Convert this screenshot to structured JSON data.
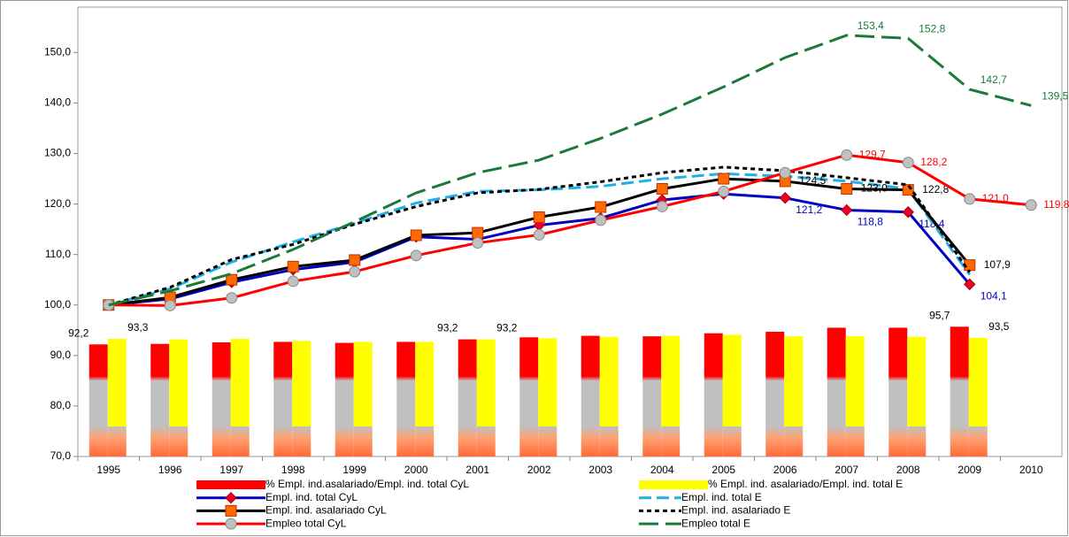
{
  "chart_data": {
    "type": "combo",
    "categories": [
      "1995",
      "1996",
      "1997",
      "1998",
      "1999",
      "2000",
      "2001",
      "2002",
      "2003",
      "2004",
      "2005",
      "2006",
      "2007",
      "2008",
      "2009",
      "2010"
    ],
    "ylim": [
      70,
      159
    ],
    "yticks": [
      {
        "value": 70,
        "label": "70,0"
      },
      {
        "value": 80,
        "label": "80,0"
      },
      {
        "value": 90,
        "label": "90,0"
      },
      {
        "value": 100,
        "label": "100,0"
      },
      {
        "value": 110,
        "label": "110,0"
      },
      {
        "value": 120,
        "label": "120,0"
      },
      {
        "value": 130,
        "label": "130,0"
      },
      {
        "value": 140,
        "label": "140,0"
      },
      {
        "value": 150,
        "label": "150,0"
      }
    ],
    "series": [
      {
        "name": "% Empl. ind.asalariado/Empl. ind. total CyL",
        "type": "bar",
        "color": "#ff0000",
        "values": [
          92.2,
          92.3,
          92.6,
          92.7,
          92.5,
          92.7,
          93.2,
          93.6,
          93.9,
          93.8,
          94.4,
          94.7,
          95.5,
          95.5,
          95.7,
          null
        ],
        "value_labels": [
          "92,2",
          null,
          null,
          null,
          null,
          null,
          "93,2",
          null,
          null,
          null,
          null,
          null,
          null,
          null,
          "95,7",
          null
        ]
      },
      {
        "name": "% Empl. ind. asalariado/Empl. ind. total E",
        "type": "bar",
        "color": "#ffff00",
        "values": [
          93.3,
          93.2,
          93.3,
          92.9,
          92.7,
          92.7,
          93.2,
          93.4,
          93.7,
          93.9,
          94.1,
          93.8,
          93.8,
          93.7,
          93.5,
          null
        ],
        "value_labels": [
          "93,3",
          null,
          null,
          null,
          null,
          null,
          "93,2",
          null,
          null,
          null,
          null,
          null,
          null,
          null,
          "93,5",
          null
        ]
      },
      {
        "name": "Empl. ind. total CyL",
        "type": "line",
        "color": "#0000c0",
        "marker": "diamond",
        "values": [
          100,
          101.2,
          104.5,
          107.0,
          108.5,
          113.5,
          113.0,
          115.8,
          117.2,
          120.8,
          122.0,
          121.2,
          118.8,
          118.4,
          104.1,
          null
        ],
        "value_labels": [
          null,
          null,
          null,
          null,
          null,
          null,
          null,
          null,
          null,
          null,
          null,
          "121,2",
          "118,8",
          "118,4",
          "104,1",
          null
        ]
      },
      {
        "name": "Empl. ind. total E",
        "type": "line",
        "color": "#1fb0e6",
        "dash": "14 6",
        "values": [
          100,
          103.2,
          108.5,
          112.5,
          116.2,
          120.2,
          122.5,
          122.8,
          123.5,
          125.0,
          126.0,
          125.5,
          124.5,
          123.0,
          106.0,
          null
        ]
      },
      {
        "name": "Empl. ind. asalariado CyL",
        "type": "line",
        "color": "#000000",
        "marker": "square",
        "values": [
          100,
          101.5,
          105.0,
          107.6,
          108.9,
          113.8,
          114.3,
          117.4,
          119.4,
          123.0,
          125.0,
          124.5,
          123.0,
          122.8,
          107.9,
          null
        ],
        "value_labels": [
          null,
          null,
          null,
          null,
          null,
          null,
          null,
          null,
          null,
          null,
          null,
          "124,5",
          "123,0",
          "122,8",
          "107,9",
          null
        ]
      },
      {
        "name": "Empl. ind. asalariado E",
        "type": "line",
        "color": "#000000",
        "dash": "5 4",
        "values": [
          100,
          103.5,
          109.0,
          112.0,
          116.0,
          119.5,
          122.2,
          122.9,
          124.4,
          126.2,
          127.3,
          126.6,
          125.2,
          123.8,
          106.5,
          null
        ]
      },
      {
        "name": "Empleo total CyL",
        "type": "line",
        "color": "#ff0000",
        "marker": "circle",
        "values": [
          100,
          99.9,
          101.4,
          104.7,
          106.6,
          109.8,
          112.3,
          113.9,
          116.8,
          119.5,
          122.5,
          126.2,
          129.7,
          128.2,
          121.0,
          119.8
        ],
        "value_labels": [
          null,
          null,
          null,
          null,
          null,
          null,
          null,
          null,
          null,
          null,
          null,
          null,
          "129,7",
          "128,2",
          "121,0",
          "119,8"
        ]
      },
      {
        "name": "Empleo total E",
        "type": "line",
        "color": "#1a7a3a",
        "dash": "22 8",
        "values": [
          100,
          102.8,
          106.2,
          111.0,
          116.5,
          122.2,
          126.2,
          128.7,
          133.0,
          137.8,
          143.2,
          149.0,
          153.4,
          152.8,
          142.7,
          139.5
        ],
        "value_labels": [
          null,
          null,
          null,
          null,
          null,
          null,
          null,
          null,
          null,
          null,
          null,
          null,
          "153,4",
          "152,8",
          "142,7",
          "139,5"
        ]
      }
    ]
  }
}
